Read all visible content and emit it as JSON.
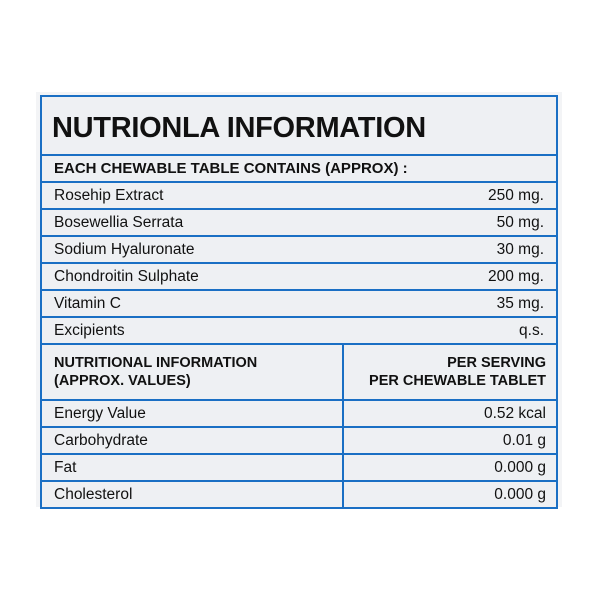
{
  "title": "NUTRIONLA INFORMATION",
  "contents_heading": "EACH CHEWABLE TABLE CONTAINS (APPROX) :",
  "ingredients": [
    {
      "name": "Rosehip Extract",
      "amount": "250 mg."
    },
    {
      "name": "Bosewellia Serrata",
      "amount": "50 mg."
    },
    {
      "name": "Sodium Hyaluronate",
      "amount": "30 mg."
    },
    {
      "name": "Chondroitin Sulphate",
      "amount": "200 mg."
    },
    {
      "name": "Vitamin C",
      "amount": "35 mg."
    },
    {
      "name": "Excipients",
      "amount": "q.s."
    }
  ],
  "nutrition_header": {
    "left_line1": "NUTRITIONAL INFORMATION",
    "left_line2": "(APPROX. VALUES)",
    "right_line1": "PER SERVING",
    "right_line2": "PER CHEWABLE TABLET"
  },
  "nutrition": [
    {
      "name": "Energy Value",
      "value": "0.52 kcal"
    },
    {
      "name": "Carbohydrate",
      "value": "0.01 g"
    },
    {
      "name": "Fat",
      "value": "0.000 g"
    },
    {
      "name": "Cholesterol",
      "value": "0.000 g"
    }
  ],
  "colors": {
    "border": "#1a6fc4",
    "background": "#eef0f3"
  }
}
